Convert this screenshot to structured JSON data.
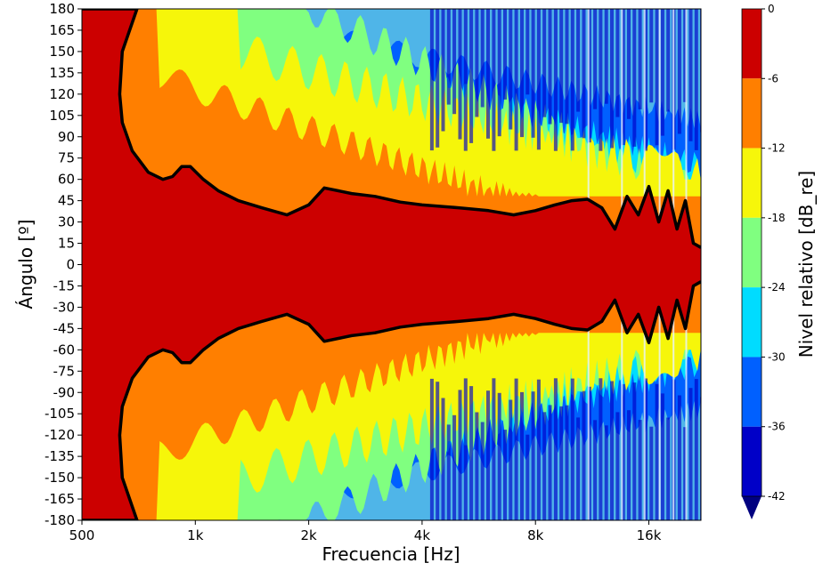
{
  "chart_data": {
    "type": "heatmap",
    "title": "",
    "xlabel": "Frecuencia [Hz]",
    "ylabel": "Ángulo [º]",
    "x_scale": "log2",
    "xlim": [
      500,
      22000
    ],
    "ylim": [
      -180,
      180
    ],
    "x_ticks": [
      500,
      1000,
      2000,
      4000,
      8000,
      16000
    ],
    "x_tick_labels": [
      "500",
      "1k",
      "2k",
      "4k",
      "8k",
      "16k"
    ],
    "y_ticks": [
      180,
      165,
      150,
      135,
      120,
      105,
      90,
      75,
      60,
      45,
      30,
      15,
      0,
      -15,
      -30,
      -45,
      -60,
      -75,
      -90,
      -105,
      -120,
      -135,
      -150,
      -165,
      -180
    ],
    "y_tick_labels": [
      "180",
      "165",
      "150",
      "135",
      "120",
      "105",
      "90",
      "75",
      "60",
      "45",
      "30",
      "15",
      "0",
      "-15",
      "-30",
      "-45",
      "-60",
      "-75",
      "-90",
      "-105",
      "-120",
      "-135",
      "-150",
      "-165",
      "-180"
    ],
    "colorbar": {
      "label": "Nivel relativo [dB_re]",
      "ticks": [
        0,
        -6,
        -12,
        -18,
        -24,
        -30,
        -36,
        -42
      ],
      "tick_labels": [
        "0",
        "-6",
        "-12",
        "-18",
        "-24",
        "-30",
        "-36",
        "-42"
      ],
      "bands": [
        {
          "from": -6,
          "to": 0,
          "color": "#cc0000"
        },
        {
          "from": -12,
          "to": -6,
          "color": "#ff7f00"
        },
        {
          "from": -18,
          "to": -12,
          "color": "#f6f60a"
        },
        {
          "from": -24,
          "to": -18,
          "color": "#80ff80"
        },
        {
          "from": -30,
          "to": -24,
          "color": "#00dcff"
        },
        {
          "from": -36,
          "to": -30,
          "color": "#0060ff"
        },
        {
          "from": -42,
          "to": -36,
          "color": "#0000c8"
        }
      ],
      "extend_color": "#000080"
    },
    "contour_minus6_db": [
      {
        "f": 500,
        "angle": 180
      },
      {
        "f": 700,
        "angle": 180
      },
      {
        "f": 640,
        "angle": 150
      },
      {
        "f": 630,
        "angle": 120
      },
      {
        "f": 640,
        "angle": 100
      },
      {
        "f": 680,
        "angle": 80
      },
      {
        "f": 750,
        "angle": 65
      },
      {
        "f": 820,
        "angle": 60
      },
      {
        "f": 870,
        "angle": 62
      },
      {
        "f": 920,
        "angle": 69
      },
      {
        "f": 970,
        "angle": 69
      },
      {
        "f": 1050,
        "angle": 60
      },
      {
        "f": 1150,
        "angle": 52
      },
      {
        "f": 1300,
        "angle": 45
      },
      {
        "f": 1500,
        "angle": 40
      },
      {
        "f": 1750,
        "angle": 35
      },
      {
        "f": 2000,
        "angle": 42
      },
      {
        "f": 2200,
        "angle": 54
      },
      {
        "f": 2600,
        "angle": 50
      },
      {
        "f": 3000,
        "angle": 48
      },
      {
        "f": 3500,
        "angle": 44
      },
      {
        "f": 4000,
        "angle": 42
      },
      {
        "f": 5000,
        "angle": 40
      },
      {
        "f": 6000,
        "angle": 38
      },
      {
        "f": 7000,
        "angle": 35
      },
      {
        "f": 8000,
        "angle": 38
      },
      {
        "f": 9000,
        "angle": 42
      },
      {
        "f": 10000,
        "angle": 45
      },
      {
        "f": 11000,
        "angle": 46
      },
      {
        "f": 12000,
        "angle": 40
      },
      {
        "f": 13000,
        "angle": 25
      },
      {
        "f": 14000,
        "angle": 48
      },
      {
        "f": 15000,
        "angle": 35
      },
      {
        "f": 16000,
        "angle": 55
      },
      {
        "f": 17000,
        "angle": 30
      },
      {
        "f": 18000,
        "angle": 52
      },
      {
        "f": 19000,
        "angle": 25
      },
      {
        "f": 20000,
        "angle": 45
      },
      {
        "f": 21000,
        "angle": 15
      },
      {
        "f": 22000,
        "angle": 12
      }
    ]
  }
}
